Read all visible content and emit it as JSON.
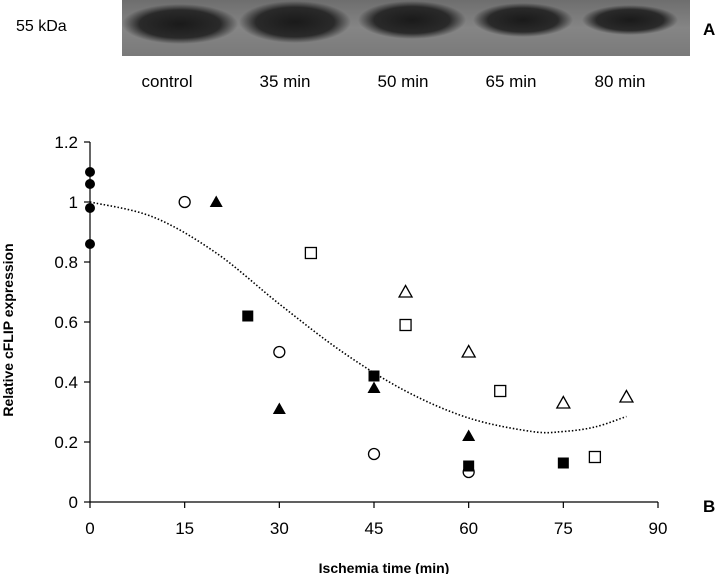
{
  "blot": {
    "panel_label": "A",
    "mw_marker": "55 kDa",
    "lanes": [
      "control",
      "35 min",
      "50 min",
      "65 min",
      "80 min"
    ]
  },
  "plot": {
    "panel_label": "B"
  },
  "chart_data": {
    "type": "scatter",
    "title": "",
    "xlabel": "Ischemia time (min)",
    "ylabel": "Relative cFLIP expression",
    "xlim": [
      0,
      90
    ],
    "ylim": [
      0,
      1.2
    ],
    "xticks": [
      0,
      15,
      30,
      45,
      60,
      75,
      90
    ],
    "yticks": [
      0,
      0.2,
      0.4,
      0.6,
      0.8,
      1,
      1.2
    ],
    "ytick_labels": [
      "0",
      "0.2",
      "0.4",
      "0.6",
      "0.8",
      "1",
      "1.2"
    ],
    "grid": false,
    "series": [
      {
        "marker": "filled-circle",
        "points": [
          [
            0,
            1.1
          ],
          [
            0,
            1.06
          ],
          [
            0,
            0.98
          ],
          [
            0,
            0.86
          ]
        ]
      },
      {
        "marker": "open-circle",
        "points": [
          [
            15,
            1.0
          ],
          [
            30,
            0.5
          ],
          [
            45,
            0.16
          ],
          [
            60,
            0.1
          ]
        ]
      },
      {
        "marker": "filled-triangle",
        "points": [
          [
            20,
            1.0
          ],
          [
            30,
            0.31
          ],
          [
            45,
            0.38
          ],
          [
            60,
            0.22
          ]
        ]
      },
      {
        "marker": "filled-square",
        "points": [
          [
            25,
            0.62
          ],
          [
            45,
            0.42
          ],
          [
            60,
            0.12
          ],
          [
            75,
            0.13
          ]
        ]
      },
      {
        "marker": "open-square",
        "points": [
          [
            35,
            0.83
          ],
          [
            50,
            0.59
          ],
          [
            65,
            0.37
          ],
          [
            80,
            0.15
          ]
        ]
      },
      {
        "marker": "open-triangle",
        "points": [
          [
            50,
            0.7
          ],
          [
            60,
            0.5
          ],
          [
            75,
            0.33
          ],
          [
            85,
            0.35
          ]
        ]
      }
    ],
    "trendline": {
      "style": "dotted",
      "type": "polynomial",
      "x_range": [
        0,
        85
      ],
      "points": [
        [
          0,
          1.0
        ],
        [
          10,
          0.95
        ],
        [
          20,
          0.83
        ],
        [
          30,
          0.66
        ],
        [
          40,
          0.5
        ],
        [
          50,
          0.37
        ],
        [
          60,
          0.28
        ],
        [
          70,
          0.235
        ],
        [
          75,
          0.235
        ],
        [
          80,
          0.25
        ],
        [
          85,
          0.285
        ]
      ]
    }
  }
}
